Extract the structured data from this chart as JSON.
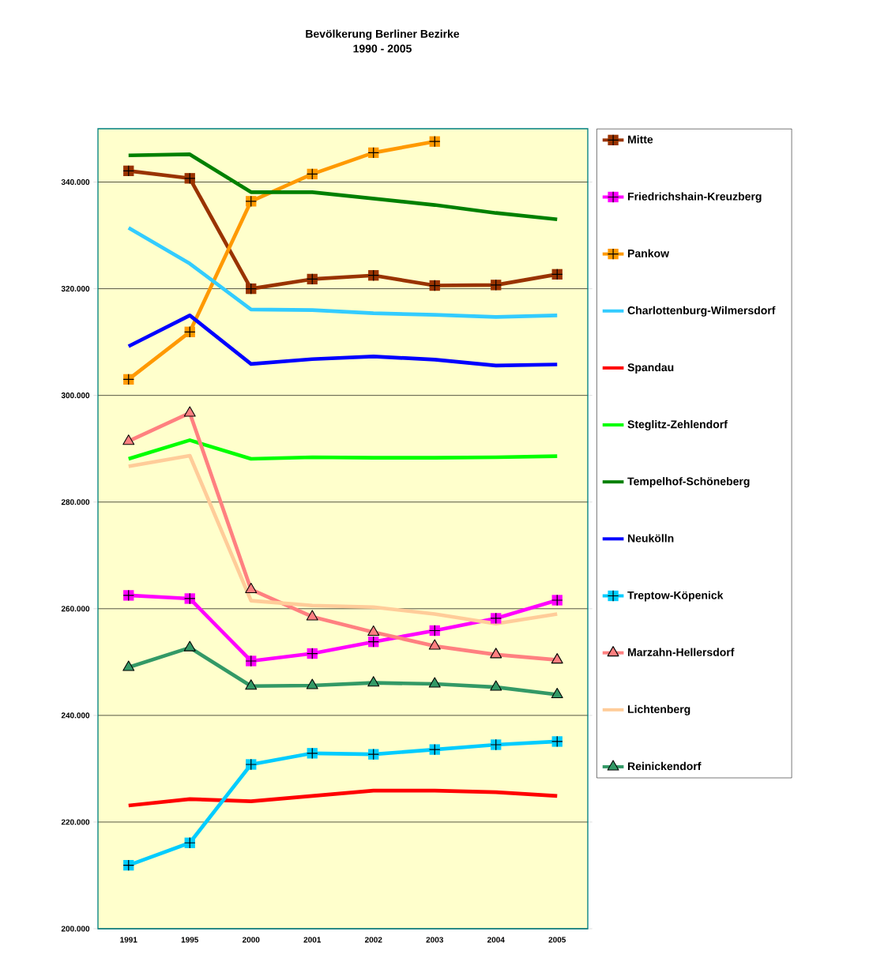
{
  "chart_data": {
    "type": "line",
    "title": "Bevölkerung Berliner Bezirke",
    "subtitle": "1990 - 2005",
    "categories": [
      "1991",
      "1995",
      "2000",
      "2001",
      "2002",
      "2003",
      "2004",
      "2005"
    ],
    "series": [
      {
        "name": "Mitte",
        "color": "#993300",
        "marker": "square",
        "values": [
          342100,
          340700,
          320000,
          321800,
          322500,
          320600,
          320700,
          322700
        ]
      },
      {
        "name": "Friedrichshain-Kreuzberg",
        "color": "#ff00ff",
        "marker": "square",
        "values": [
          262500,
          261900,
          250200,
          251600,
          253800,
          255900,
          258200,
          261600
        ]
      },
      {
        "name": "Pankow",
        "color": "#ff9900",
        "marker": "square",
        "values": [
          303000,
          311900,
          336400,
          341500,
          345500,
          347600,
          null,
          null
        ]
      },
      {
        "name": "Charlottenburg-Wilmersdorf",
        "color": "#33ccff",
        "marker": "none",
        "values": [
          331400,
          324700,
          316100,
          316000,
          315400,
          315100,
          314700,
          315000
        ]
      },
      {
        "name": "Spandau",
        "color": "#ff0000",
        "marker": "none",
        "values": [
          223100,
          224300,
          223900,
          224900,
          225900,
          225900,
          225600,
          224900
        ]
      },
      {
        "name": "Steglitz-Zehlendorf",
        "color": "#00ff00",
        "marker": "none",
        "values": [
          288100,
          291600,
          288100,
          288400,
          288300,
          288300,
          288400,
          288600
        ]
      },
      {
        "name": "Tempelhof-Schöneberg",
        "color": "#008000",
        "marker": "none",
        "values": [
          345000,
          345200,
          338100,
          338100,
          336900,
          335700,
          334200,
          333000
        ]
      },
      {
        "name": "Neukölln",
        "color": "#0000ff",
        "marker": "none",
        "values": [
          309200,
          315000,
          305900,
          306800,
          307300,
          306700,
          305600,
          305800
        ]
      },
      {
        "name": "Treptow-Köpenick",
        "color": "#00ccff",
        "marker": "square",
        "values": [
          211900,
          216100,
          230800,
          232900,
          232700,
          233600,
          234500,
          235100
        ]
      },
      {
        "name": "Marzahn-Hellersdorf",
        "color": "#ff8080",
        "marker": "triangle",
        "values": [
          291400,
          296700,
          263600,
          258500,
          255600,
          253000,
          251400,
          250400
        ]
      },
      {
        "name": "Lichtenberg",
        "color": "#ffcc99",
        "marker": "none",
        "values": [
          286700,
          288700,
          261500,
          260600,
          260300,
          259000,
          257200,
          259000
        ]
      },
      {
        "name": "Reinickendorf",
        "color": "#339966",
        "marker": "triangle",
        "values": [
          249000,
          252700,
          245500,
          245600,
          246100,
          245900,
          245300,
          243900
        ]
      }
    ],
    "ylim": [
      200000,
      350000
    ],
    "yticks": [
      {
        "value": 200000,
        "label": "200.000"
      },
      {
        "value": 220000,
        "label": "220.000"
      },
      {
        "value": 240000,
        "label": "240.000"
      },
      {
        "value": 260000,
        "label": "260.000"
      },
      {
        "value": 280000,
        "label": "280.000"
      },
      {
        "value": 300000,
        "label": "300.000"
      },
      {
        "value": 320000,
        "label": "320.000"
      },
      {
        "value": 340000,
        "label": "340.000"
      }
    ],
    "grid": "y",
    "legend": "right",
    "line_style": "solid"
  }
}
